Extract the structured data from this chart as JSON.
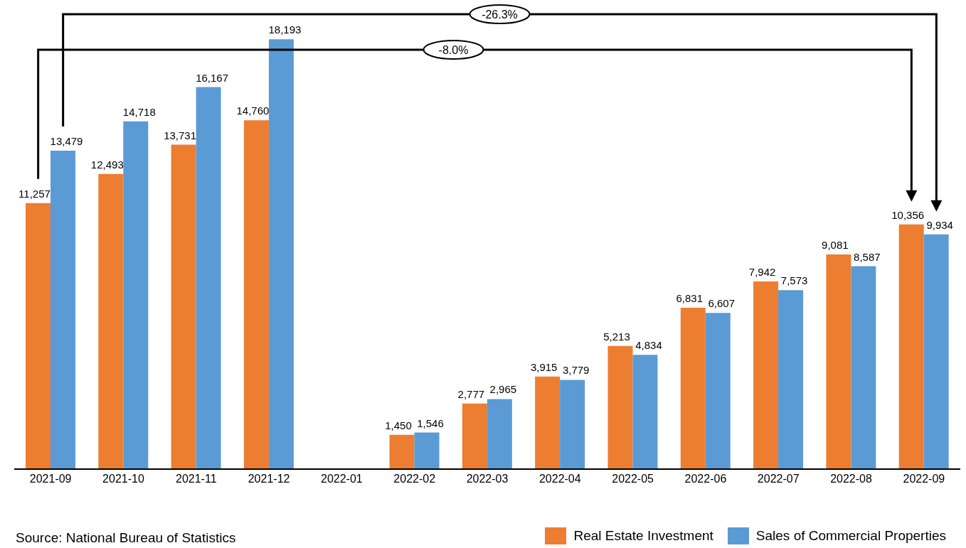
{
  "chart_data": {
    "type": "bar",
    "categories": [
      "2021-09",
      "2021-10",
      "2021-11",
      "2021-12",
      "2022-01",
      "2022-02",
      "2022-03",
      "2022-04",
      "2022-05",
      "2022-06",
      "2022-07",
      "2022-08",
      "2022-09"
    ],
    "series": [
      {
        "name": "Real Estate Investment",
        "color": "#ed7d31",
        "values": [
          11257,
          12493,
          13731,
          14760,
          null,
          1450,
          2777,
          3915,
          5213,
          6831,
          7942,
          9081,
          10356
        ],
        "value_labels": [
          "11,257",
          "12,493",
          "13,731",
          "14,760",
          null,
          "1,450",
          "2,777",
          "3,915",
          "5,213",
          "6,831",
          "7,942",
          "9,081",
          "10,356"
        ]
      },
      {
        "name": "Sales of Commercial Properties",
        "color": "#5b9bd5",
        "values": [
          13479,
          14718,
          16167,
          18193,
          null,
          1546,
          2965,
          3779,
          4834,
          6607,
          7573,
          8587,
          9934
        ],
        "value_labels": [
          "13,479",
          "14,718",
          "16,167",
          "18,193",
          null,
          "1,546",
          "2,965",
          "3,779",
          "4,834",
          "6,607",
          "7,573",
          "8,587",
          "9,934"
        ]
      }
    ],
    "tick_labels": "x",
    "legend": "bottom right",
    "annotations": [
      "-26.3%",
      "-8.0%",
      "Source: National Bureau of Statistics"
    ]
  }
}
